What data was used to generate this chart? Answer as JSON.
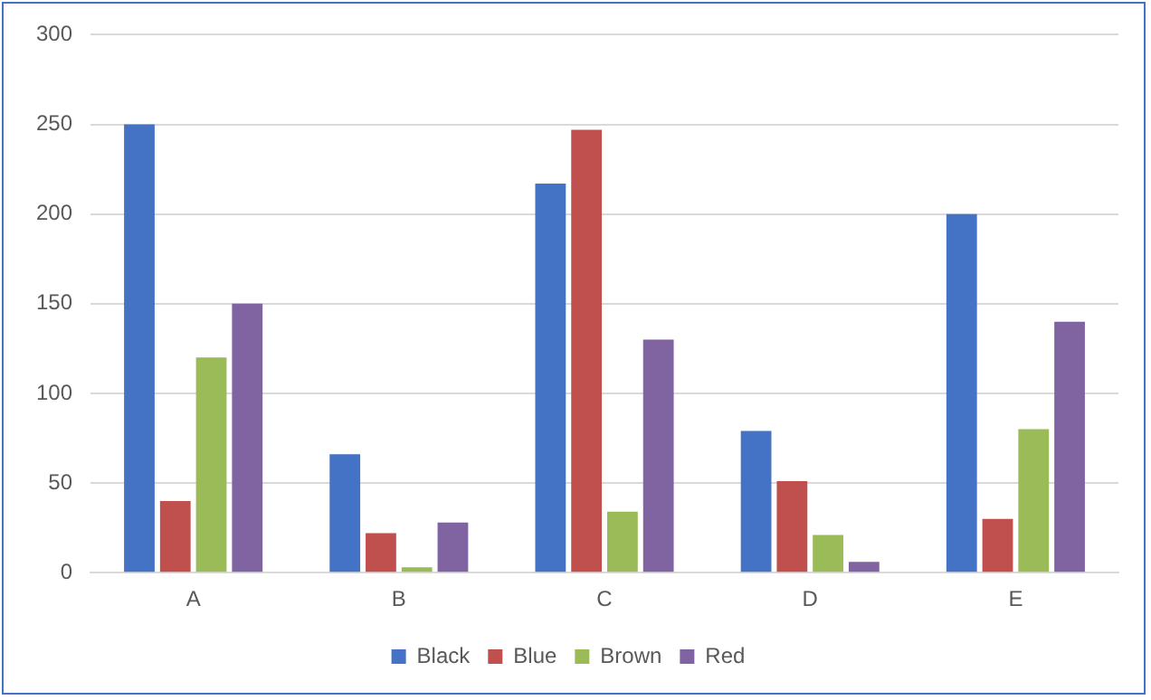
{
  "chart_data": {
    "type": "bar",
    "categories": [
      "A",
      "B",
      "C",
      "D",
      "E"
    ],
    "series": [
      {
        "name": "Black",
        "color": "#4472c4",
        "values": [
          250,
          66,
          217,
          79,
          200
        ]
      },
      {
        "name": "Blue",
        "color": "#c0504d",
        "values": [
          40,
          22,
          247,
          51,
          30
        ]
      },
      {
        "name": "Brown",
        "color": "#9bbb59",
        "values": [
          120,
          3,
          34,
          21,
          80
        ]
      },
      {
        "name": "Red",
        "color": "#8064a2",
        "values": [
          150,
          28,
          130,
          6,
          140
        ]
      }
    ],
    "ylim": [
      0,
      300
    ],
    "yticks": [
      0,
      50,
      100,
      150,
      200,
      250,
      300
    ],
    "grid": "y",
    "legend": "bottom"
  }
}
